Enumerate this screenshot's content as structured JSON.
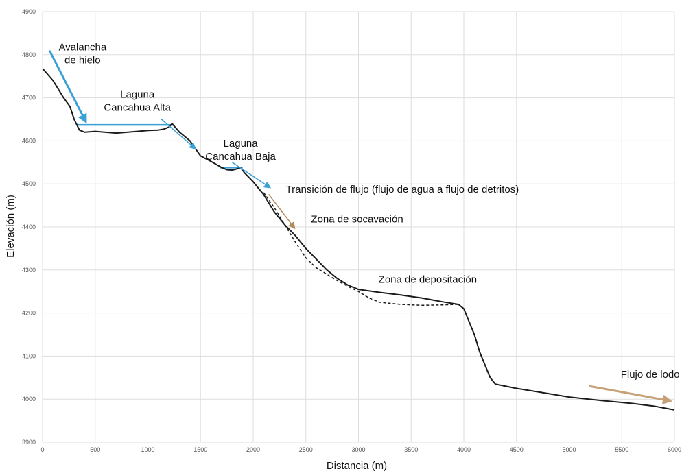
{
  "chart_data": {
    "type": "line",
    "title": "",
    "xlabel": "Distancia (m)",
    "ylabel": "Elevación (m)",
    "xlim": [
      0,
      6000
    ],
    "ylim": [
      3900,
      4900
    ],
    "xticks": [
      0,
      500,
      1000,
      1500,
      2000,
      2500,
      3000,
      3500,
      4000,
      4500,
      5000,
      5500,
      6000
    ],
    "yticks": [
      3900,
      4000,
      4100,
      4200,
      4300,
      4400,
      4500,
      4600,
      4700,
      4800,
      4900
    ],
    "grid": true,
    "legend": "none",
    "colors": {
      "profile": "#1a1a1a",
      "water": "#3aa0d5",
      "arrow_brown": "#b08a5a",
      "grid": "#dddddd"
    },
    "series": [
      {
        "style": "solid",
        "x": [
          0,
          100,
          200,
          260,
          300,
          350,
          400,
          500,
          700,
          900,
          1000,
          1100,
          1150,
          1200,
          1230,
          1300,
          1400,
          1500,
          1600,
          1650,
          1700,
          1750,
          1800,
          1850,
          1880,
          1920,
          2000,
          2100,
          2200,
          2300,
          2400,
          2500,
          2600,
          2700,
          2800,
          2900,
          3000,
          3200,
          3400,
          3600,
          3800,
          3950,
          4000,
          4050,
          4100,
          4150,
          4200,
          4250,
          4300,
          4400,
          4500,
          4700,
          5000,
          5300,
          5600,
          5800,
          6000
        ],
        "y": [
          4768,
          4740,
          4700,
          4680,
          4650,
          4625,
          4620,
          4622,
          4618,
          4622,
          4624,
          4625,
          4627,
          4632,
          4640,
          4620,
          4600,
          4565,
          4552,
          4545,
          4538,
          4533,
          4532,
          4535,
          4538,
          4525,
          4505,
          4475,
          4435,
          4405,
          4380,
          4350,
          4325,
          4300,
          4280,
          4265,
          4255,
          4248,
          4242,
          4235,
          4226,
          4220,
          4210,
          4180,
          4150,
          4110,
          4080,
          4050,
          4035,
          4030,
          4025,
          4017,
          4005,
          3997,
          3990,
          3984,
          3975
        ]
      },
      {
        "style": "dashed",
        "x": [
          2100,
          2200,
          2300,
          2400,
          2500,
          2600,
          2700,
          2800,
          2900,
          3000,
          3100,
          3200,
          3400,
          3600,
          3800,
          3950
        ],
        "y": [
          4480,
          4445,
          4405,
          4365,
          4328,
          4305,
          4290,
          4275,
          4262,
          4250,
          4235,
          4225,
          4220,
          4218,
          4219,
          4220
        ]
      }
    ],
    "annotations": [
      {
        "lines": [
          "Avalancha",
          "de hielo"
        ],
        "x": 380,
        "y": 4810
      },
      {
        "lines": [
          "Laguna",
          "Cancahua Alta"
        ],
        "x": 900,
        "y": 4700
      },
      {
        "lines": [
          "Laguna",
          "Cancahua Baja"
        ],
        "x": 1880,
        "y": 4586
      },
      {
        "lines": [
          "Transición de flujo (flujo de agua a flujo de detritos)"
        ],
        "x": 2310,
        "y": 4480
      },
      {
        "lines": [
          "Zona de socavación"
        ],
        "x": 2550,
        "y": 4410
      },
      {
        "lines": [
          "Zona de depositación"
        ],
        "x": 3190,
        "y": 4270
      },
      {
        "lines": [
          "Flujo de lodo"
        ],
        "x": 5490,
        "y": 4050
      }
    ],
    "arrows": [
      {
        "name": "avalanche-arrow",
        "color": "#3aa0d5",
        "from": [
          70,
          4808
        ],
        "to": [
          420,
          4640
        ],
        "width": 3
      },
      {
        "name": "flow-arrow-1",
        "color": "#3aa0d5",
        "from": [
          1130,
          4650
        ],
        "to": [
          1460,
          4580
        ],
        "width": 1.5
      },
      {
        "name": "flow-arrow-2",
        "color": "#3aa0d5",
        "from": [
          1800,
          4550
        ],
        "to": [
          2170,
          4490
        ],
        "width": 1.5
      },
      {
        "name": "transition-arrow",
        "color": "#b08a5a",
        "from": [
          2150,
          4475
        ],
        "to": [
          2400,
          4395
        ],
        "width": 1.5
      },
      {
        "name": "mudflow-arrow",
        "color": "#c6a077",
        "from": [
          5200,
          4030
        ],
        "to": [
          5980,
          3995
        ],
        "width": 3
      }
    ],
    "water_levels": [
      {
        "name": "laguna-alta-level",
        "x": [
          330,
          1240
        ],
        "y": 4637
      },
      {
        "name": "laguna-baja-level",
        "x": [
          1680,
          1900
        ],
        "y": 4538
      }
    ]
  }
}
